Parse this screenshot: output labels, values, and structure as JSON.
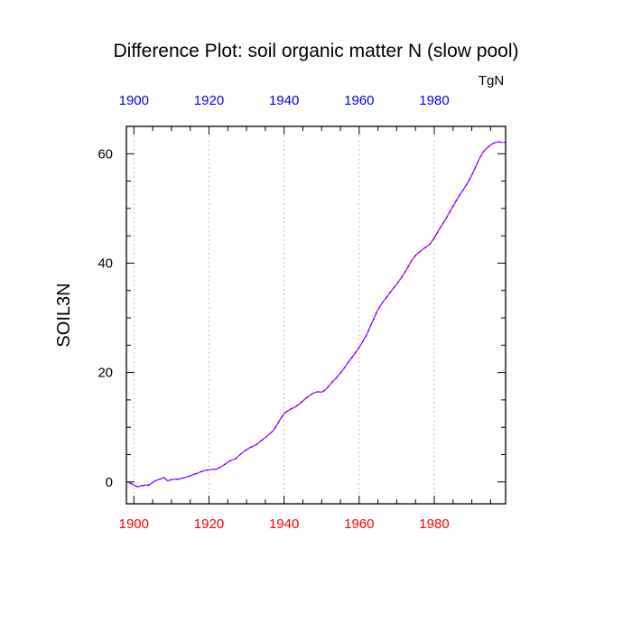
{
  "chart_data": {
    "type": "line",
    "title": "Difference Plot: soil organic matter N (slow pool)",
    "units": "TgN",
    "ylabel": "SOIL3N",
    "xlabel": "",
    "xlim": [
      1898,
      1999
    ],
    "ylim": [
      -4,
      65
    ],
    "grid": "vertical-dashed",
    "x_ticks": [
      1900,
      1920,
      1940,
      1960,
      1980
    ],
    "y_ticks": [
      0,
      20,
      40,
      60
    ],
    "top_tick_color": "#0000ff",
    "bottom_tick_color": "#ff0000",
    "series": [
      {
        "color_a": "#0000ff",
        "color_b": "#ff00ff",
        "x": [
          1898,
          1899,
          1900,
          1901,
          1902,
          1903,
          1904,
          1905,
          1906,
          1907,
          1908,
          1909,
          1910,
          1911,
          1912,
          1913,
          1914,
          1915,
          1916,
          1917,
          1918,
          1919,
          1920,
          1921,
          1922,
          1923,
          1924,
          1925,
          1926,
          1927,
          1928,
          1929,
          1930,
          1931,
          1932,
          1933,
          1934,
          1935,
          1936,
          1937,
          1938,
          1939,
          1940,
          1941,
          1942,
          1943,
          1944,
          1945,
          1946,
          1947,
          1948,
          1949,
          1950,
          1951,
          1952,
          1953,
          1954,
          1955,
          1956,
          1957,
          1958,
          1959,
          1960,
          1961,
          1962,
          1963,
          1964,
          1965,
          1966,
          1967,
          1968,
          1969,
          1970,
          1971,
          1972,
          1973,
          1974,
          1975,
          1976,
          1977,
          1978,
          1979,
          1980,
          1981,
          1982,
          1983,
          1984,
          1985,
          1986,
          1987,
          1988,
          1989,
          1990,
          1991,
          1992,
          1993,
          1994,
          1995,
          1996,
          1997,
          1998,
          1999
        ],
        "y": [
          0,
          -0.2,
          -0.6,
          -0.9,
          -0.7,
          -0.6,
          -0.6,
          -0.1,
          0.3,
          0.5,
          0.8,
          0.2,
          0.4,
          0.5,
          0.5,
          0.7,
          0.9,
          1.1,
          1.4,
          1.6,
          1.9,
          2.1,
          2.2,
          2.3,
          2.3,
          2.7,
          3.1,
          3.6,
          4.0,
          4.2,
          4.8,
          5.4,
          5.9,
          6.3,
          6.6,
          7.0,
          7.6,
          8.1,
          8.7,
          9.3,
          10.3,
          11.5,
          12.5,
          13.0,
          13.4,
          13.7,
          14.2,
          14.8,
          15.4,
          15.9,
          16.3,
          16.5,
          16.4,
          16.8,
          17.6,
          18.4,
          19.1,
          19.9,
          20.8,
          21.8,
          22.7,
          23.6,
          24.6,
          25.7,
          26.9,
          28.5,
          30.0,
          31.5,
          32.6,
          33.5,
          34.4,
          35.3,
          36.2,
          37.1,
          38.1,
          39.3,
          40.5,
          41.4,
          42.0,
          42.6,
          43.0,
          43.6,
          44.6,
          45.8,
          46.9,
          48.0,
          49.2,
          50.4,
          51.6,
          52.7,
          53.7,
          54.8,
          56.1,
          57.6,
          59.1,
          60.3,
          61.0,
          61.6,
          62.0,
          62.2,
          62.1,
          62.1
        ]
      }
    ]
  }
}
